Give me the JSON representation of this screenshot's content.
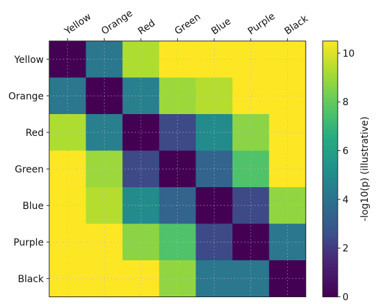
{
  "chart_data": {
    "type": "heatmap",
    "title": "",
    "xlabel": "",
    "ylabel": "",
    "row_labels": [
      "Yellow",
      "Orange",
      "Red",
      "Green",
      "Blue",
      "Purple",
      "Black"
    ],
    "col_labels": [
      "Yellow",
      "Orange",
      "Red",
      "Green",
      "Blue",
      "Purple",
      "Black"
    ],
    "values": [
      [
        0.0,
        4.2,
        9.3,
        10.5,
        10.5,
        10.5,
        10.5
      ],
      [
        4.2,
        0.0,
        4.5,
        9.0,
        9.4,
        10.5,
        10.5
      ],
      [
        9.3,
        4.5,
        0.0,
        2.4,
        5.0,
        8.7,
        10.5
      ],
      [
        10.5,
        9.0,
        2.4,
        0.0,
        3.4,
        7.6,
        10.5
      ],
      [
        10.5,
        9.4,
        5.0,
        3.4,
        0.0,
        2.4,
        8.8
      ],
      [
        10.5,
        10.5,
        8.7,
        7.6,
        2.4,
        0.0,
        4.2
      ],
      [
        10.5,
        10.5,
        10.5,
        8.8,
        4.2,
        4.2,
        0.0
      ]
    ],
    "colorbar": {
      "label": "-log10(p) (illustrative)",
      "range": [
        0,
        10.5
      ],
      "ticks": [
        "0",
        "2",
        "4",
        "6",
        "8",
        "10"
      ],
      "colormap": "viridis"
    },
    "grid": true
  }
}
